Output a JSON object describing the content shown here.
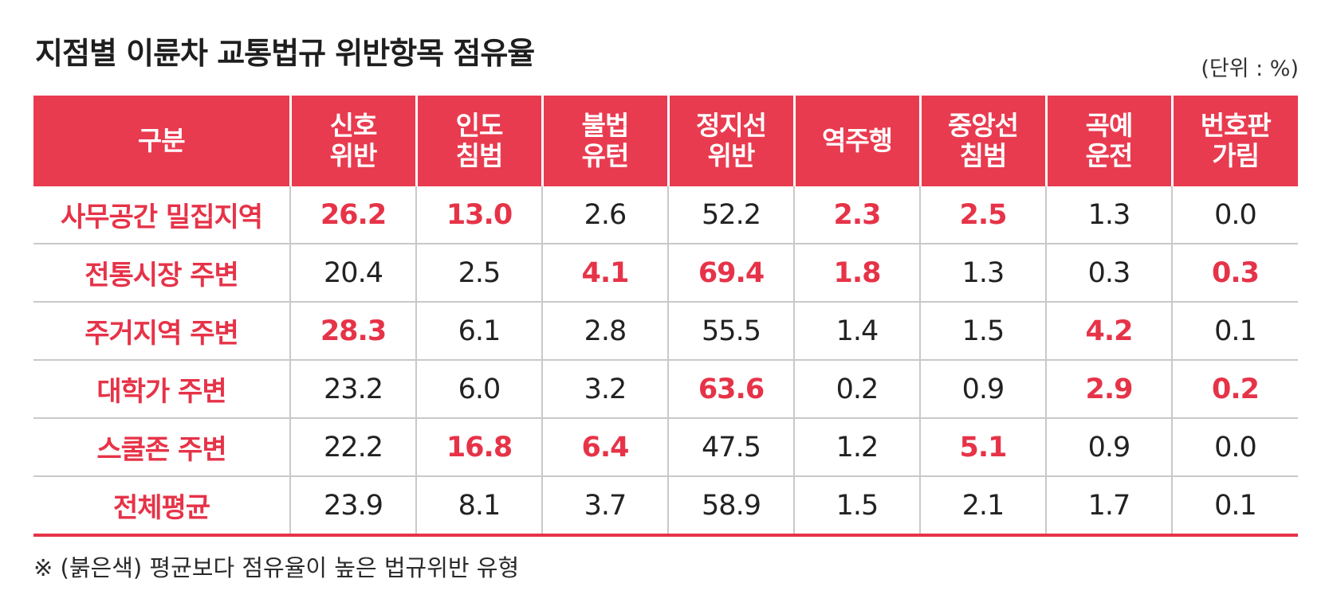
{
  "chart_data": {
    "type": "table",
    "title": "지점별 이륜차 교통법규 위반항목 점유율",
    "unit_label": "(단위 : %)",
    "row_header_label": "구분",
    "columns": [
      {
        "line1": "신호",
        "line2": "위반"
      },
      {
        "line1": "인도",
        "line2": "침범"
      },
      {
        "line1": "불법",
        "line2": "유턴"
      },
      {
        "line1": "정지선",
        "line2": "위반"
      },
      {
        "line1": "역주행",
        "line2": ""
      },
      {
        "line1": "중앙선",
        "line2": "침범"
      },
      {
        "line1": "곡예",
        "line2": "운전"
      },
      {
        "line1": "번호판",
        "line2": "가림"
      }
    ],
    "rows": [
      {
        "label": "사무공간 밀집지역",
        "values": [
          "26.2",
          "13.0",
          "2.6",
          "52.2",
          "2.3",
          "2.5",
          "1.3",
          "0.0"
        ],
        "highlight": [
          true,
          true,
          false,
          false,
          true,
          true,
          false,
          false
        ]
      },
      {
        "label": "전통시장 주변",
        "values": [
          "20.4",
          "2.5",
          "4.1",
          "69.4",
          "1.8",
          "1.3",
          "0.3",
          "0.3"
        ],
        "highlight": [
          false,
          false,
          true,
          true,
          true,
          false,
          false,
          true
        ]
      },
      {
        "label": "주거지역 주변",
        "values": [
          "28.3",
          "6.1",
          "2.8",
          "55.5",
          "1.4",
          "1.5",
          "4.2",
          "0.1"
        ],
        "highlight": [
          true,
          false,
          false,
          false,
          false,
          false,
          true,
          false
        ]
      },
      {
        "label": "대학가 주변",
        "values": [
          "23.2",
          "6.0",
          "3.2",
          "63.6",
          "0.2",
          "0.9",
          "2.9",
          "0.2"
        ],
        "highlight": [
          false,
          false,
          false,
          true,
          false,
          false,
          true,
          true
        ]
      },
      {
        "label": "스쿨존 주변",
        "values": [
          "22.2",
          "16.8",
          "6.4",
          "47.5",
          "1.2",
          "5.1",
          "0.9",
          "0.0"
        ],
        "highlight": [
          false,
          true,
          true,
          false,
          false,
          true,
          false,
          false
        ]
      },
      {
        "label": "전체평균",
        "values": [
          "23.9",
          "8.1",
          "3.7",
          "58.9",
          "1.5",
          "2.1",
          "1.7",
          "0.1"
        ],
        "highlight": [
          false,
          false,
          false,
          false,
          false,
          false,
          false,
          false
        ]
      }
    ],
    "note": "※ (붉은색) 평균보다 점유율이 높은 법규위반 유형",
    "colors": {
      "accent": "#e93b50",
      "highlight_text": "#e63348",
      "grid": "#c9c9c9"
    }
  }
}
